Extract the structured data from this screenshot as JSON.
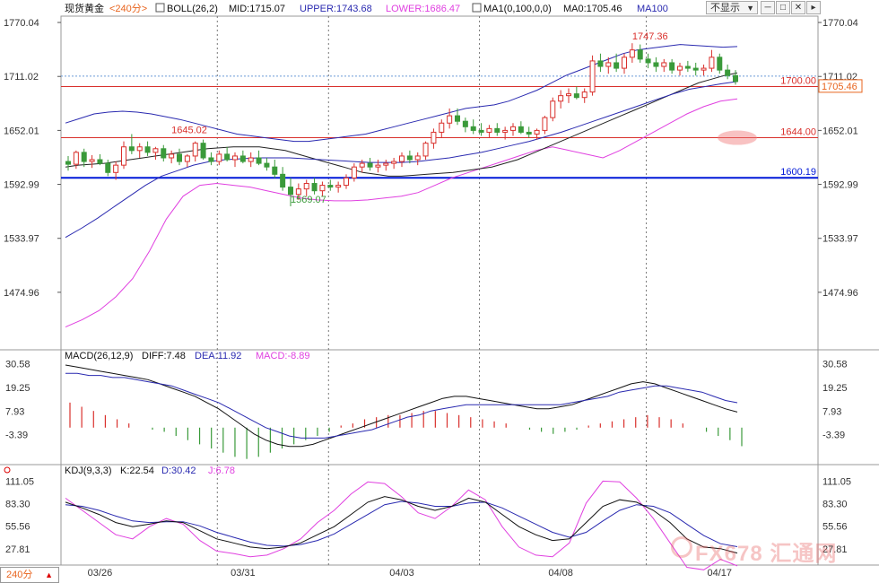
{
  "header": {
    "instrument": "现货黄金",
    "period": "<240分>",
    "boll_label": "BOLL(26,2)",
    "mid": "MID:1715.07",
    "upper": "UPPER:1743.68",
    "lower": "LOWER:1686.47",
    "ma_label": "MA1(0,100,0,0)",
    "ma0": "MA0:1705.46",
    "ma100": "MA100",
    "display_dropdown": "不显示"
  },
  "macd_header": {
    "label": "MACD(26,12,9)",
    "diff": "DIFF:7.48",
    "dea": "DEA:11.92",
    "macd": "MACD:-8.89"
  },
  "kdj_header": {
    "label": "KDJ(9,3,3)",
    "k": "K:22.54",
    "d": "D:30.42",
    "j": "J:6.78"
  },
  "period_selector": "240分",
  "watermark": "FX678 汇通网",
  "colors": {
    "up": "#d9302c",
    "down": "#3a9a3a",
    "mid": "#1a1a1a",
    "band": "#2a2ab0",
    "lower": "#e040e0",
    "blue_line": "#0018d8"
  },
  "chart_data": [
    {
      "type": "candlestick",
      "title": "现货黄金 240分",
      "x_ticks": [
        "03/26",
        "03/31",
        "04/03",
        "04/08",
        "04/17"
      ],
      "y_ticks": [
        1770.04,
        1711.02,
        1652.01,
        1592.99,
        1533.97,
        1474.96
      ],
      "ylim": [
        1416,
        1775
      ],
      "grid": "vertical dotted",
      "ohlc": [
        [
          1618,
          1624,
          1608,
          1615
        ],
        [
          1615,
          1630,
          1610,
          1628
        ],
        [
          1628,
          1632,
          1612,
          1618
        ],
        [
          1618,
          1625,
          1611,
          1620
        ],
        [
          1620,
          1626,
          1614,
          1616
        ],
        [
          1616,
          1620,
          1602,
          1606
        ],
        [
          1606,
          1618,
          1598,
          1614
        ],
        [
          1614,
          1640,
          1610,
          1634
        ],
        [
          1634,
          1648,
          1626,
          1630
        ],
        [
          1630,
          1638,
          1622,
          1634
        ],
        [
          1634,
          1640,
          1624,
          1628
        ],
        [
          1628,
          1634,
          1620,
          1632
        ],
        [
          1632,
          1636,
          1618,
          1622
        ],
        [
          1622,
          1630,
          1616,
          1626
        ],
        [
          1626,
          1632,
          1614,
          1618
        ],
        [
          1618,
          1626,
          1612,
          1624
        ],
        [
          1624,
          1640,
          1618,
          1638
        ],
        [
          1638,
          1642,
          1620,
          1622
        ],
        [
          1622,
          1628,
          1614,
          1618
        ],
        [
          1618,
          1630,
          1614,
          1626
        ],
        [
          1626,
          1634,
          1618,
          1620
        ],
        [
          1620,
          1628,
          1612,
          1624
        ],
        [
          1624,
          1630,
          1616,
          1618
        ],
        [
          1618,
          1628,
          1612,
          1622
        ],
        [
          1622,
          1630,
          1614,
          1616
        ],
        [
          1616,
          1622,
          1608,
          1612
        ],
        [
          1612,
          1620,
          1600,
          1604
        ],
        [
          1604,
          1612,
          1586,
          1590
        ],
        [
          1590,
          1600,
          1569,
          1582
        ],
        [
          1582,
          1594,
          1576,
          1588
        ],
        [
          1588,
          1598,
          1580,
          1594
        ],
        [
          1594,
          1600,
          1582,
          1586
        ],
        [
          1586,
          1596,
          1580,
          1592
        ],
        [
          1592,
          1598,
          1586,
          1590
        ],
        [
          1590,
          1596,
          1584,
          1592
        ],
        [
          1592,
          1604,
          1588,
          1600
        ],
        [
          1600,
          1616,
          1596,
          1612
        ],
        [
          1612,
          1620,
          1606,
          1616
        ],
        [
          1616,
          1622,
          1608,
          1612
        ],
        [
          1612,
          1620,
          1606,
          1614
        ],
        [
          1614,
          1620,
          1608,
          1616
        ],
        [
          1616,
          1622,
          1610,
          1618
        ],
        [
          1618,
          1628,
          1612,
          1624
        ],
        [
          1624,
          1630,
          1616,
          1620
        ],
        [
          1620,
          1628,
          1614,
          1624
        ],
        [
          1624,
          1640,
          1620,
          1638
        ],
        [
          1638,
          1654,
          1632,
          1650
        ],
        [
          1650,
          1664,
          1644,
          1660
        ],
        [
          1660,
          1676,
          1654,
          1668
        ],
        [
          1668,
          1676,
          1658,
          1662
        ],
        [
          1662,
          1666,
          1650,
          1656
        ],
        [
          1656,
          1664,
          1648,
          1652
        ],
        [
          1652,
          1660,
          1646,
          1650
        ],
        [
          1650,
          1658,
          1644,
          1654
        ],
        [
          1654,
          1660,
          1646,
          1650
        ],
        [
          1650,
          1656,
          1642,
          1652
        ],
        [
          1652,
          1660,
          1646,
          1656
        ],
        [
          1656,
          1662,
          1648,
          1650
        ],
        [
          1650,
          1656,
          1644,
          1648
        ],
        [
          1648,
          1654,
          1642,
          1652
        ],
        [
          1652,
          1668,
          1648,
          1666
        ],
        [
          1666,
          1688,
          1662,
          1684
        ],
        [
          1684,
          1696,
          1676,
          1690
        ],
        [
          1690,
          1698,
          1682,
          1692
        ],
        [
          1692,
          1700,
          1686,
          1688
        ],
        [
          1688,
          1698,
          1682,
          1694
        ],
        [
          1694,
          1734,
          1690,
          1728
        ],
        [
          1728,
          1736,
          1716,
          1722
        ],
        [
          1722,
          1732,
          1714,
          1726
        ],
        [
          1726,
          1736,
          1716,
          1720
        ],
        [
          1720,
          1736,
          1714,
          1732
        ],
        [
          1732,
          1747.36,
          1726,
          1740
        ],
        [
          1740,
          1746,
          1726,
          1730
        ],
        [
          1730,
          1736,
          1720,
          1726
        ],
        [
          1726,
          1732,
          1716,
          1722
        ],
        [
          1722,
          1730,
          1716,
          1726
        ],
        [
          1726,
          1730,
          1714,
          1718
        ],
        [
          1718,
          1726,
          1712,
          1722
        ],
        [
          1722,
          1728,
          1716,
          1720
        ],
        [
          1720,
          1726,
          1712,
          1718
        ],
        [
          1718,
          1724,
          1712,
          1720
        ],
        [
          1720,
          1740,
          1716,
          1732
        ],
        [
          1732,
          1736,
          1714,
          1718
        ],
        [
          1718,
          1724,
          1708,
          1712
        ],
        [
          1712,
          1718,
          1702,
          1705.46
        ]
      ],
      "boll_mid": [
        1612,
        1614,
        1615,
        1616,
        1618,
        1620,
        1622,
        1624,
        1626,
        1628,
        1630,
        1632,
        1633,
        1634,
        1634,
        1634,
        1632,
        1630,
        1626,
        1622,
        1618,
        1614,
        1610,
        1606,
        1604,
        1602,
        1602,
        1603,
        1604,
        1605,
        1606,
        1608,
        1610,
        1612,
        1616,
        1620,
        1626,
        1632,
        1638,
        1644,
        1650,
        1656,
        1662,
        1668,
        1674,
        1680,
        1686,
        1692,
        1698,
        1704,
        1708,
        1712,
        1715
      ],
      "boll_upper": [
        1660,
        1665,
        1670,
        1672,
        1673,
        1672,
        1670,
        1667,
        1664,
        1660,
        1656,
        1652,
        1648,
        1646,
        1644,
        1642,
        1640,
        1640,
        1642,
        1644,
        1646,
        1648,
        1652,
        1656,
        1660,
        1664,
        1668,
        1672,
        1676,
        1678,
        1680,
        1684,
        1690,
        1696,
        1704,
        1712,
        1718,
        1724,
        1730,
        1736,
        1740,
        1742,
        1744,
        1746,
        1745,
        1744,
        1743,
        1743.68
      ],
      "boll_lower": [
        1437,
        1445,
        1455,
        1470,
        1490,
        1520,
        1555,
        1580,
        1592,
        1594,
        1592,
        1590,
        1586,
        1582,
        1578,
        1576,
        1575,
        1575,
        1576,
        1578,
        1580,
        1584,
        1592,
        1600,
        1606,
        1612,
        1618,
        1624,
        1630,
        1634,
        1630,
        1626,
        1622,
        1630,
        1640,
        1650,
        1660,
        1670,
        1678,
        1684,
        1686.47
      ],
      "ma100": [
        1535,
        1545,
        1556,
        1568,
        1580,
        1592,
        1602,
        1608,
        1614,
        1618,
        1620,
        1621,
        1622,
        1622,
        1622,
        1621,
        1620,
        1619,
        1618,
        1617,
        1617,
        1617,
        1618,
        1620,
        1622,
        1625,
        1628,
        1632,
        1636,
        1640,
        1645,
        1650,
        1656,
        1662,
        1668,
        1674,
        1680,
        1686,
        1692,
        1697,
        1700,
        1703,
        1705.46
      ],
      "annotations": [
        {
          "text": "1747.36",
          "x": 71,
          "y": 1747.36,
          "color": "#d9302c"
        },
        {
          "text": "1645.02",
          "x": 13,
          "y": 1645.02,
          "color": "#d9302c"
        },
        {
          "text": "1569.07",
          "x": 28,
          "y": 1569.07,
          "color": "#3a9a3a"
        }
      ],
      "hlines": [
        {
          "value": 1700.0,
          "label": "1700.00",
          "color": "#d9302c"
        },
        {
          "value": 1644.0,
          "label": "1644.00",
          "color": "#d9302c"
        },
        {
          "value": 1600.19,
          "label": "1600.19",
          "color": "#0018d8"
        }
      ],
      "last_price": "1705.46",
      "right_ticks_labels": [
        "1770.04",
        "1711.02",
        "1652.01",
        "1592.99",
        "1533.97",
        "1474.96"
      ]
    },
    {
      "type": "line",
      "title": "MACD(26,12,9)",
      "y_ticks": [
        30.58,
        19.25,
        7.93,
        -3.39
      ],
      "ylim": [
        -16,
        33
      ],
      "diff": [
        30,
        29,
        28,
        27,
        26,
        25,
        24,
        23,
        21,
        19,
        17,
        15,
        12,
        9,
        5,
        1,
        -3,
        -6,
        -8,
        -9,
        -9,
        -8,
        -6,
        -4,
        -2,
        0,
        2,
        4,
        6,
        8,
        10,
        12,
        14,
        15,
        15,
        14,
        13,
        12,
        11,
        10,
        9,
        9,
        10,
        11,
        13,
        15,
        17,
        19,
        21,
        22,
        21,
        19,
        17,
        15,
        13,
        11,
        9,
        7.48
      ],
      "dea": [
        26,
        26,
        25,
        25,
        24,
        24,
        23,
        22,
        21,
        20,
        18,
        16,
        14,
        12,
        9,
        6,
        3,
        0,
        -2,
        -4,
        -5,
        -5,
        -5,
        -4,
        -3,
        -2,
        -1,
        1,
        3,
        5,
        6,
        8,
        9,
        10,
        11,
        11,
        11,
        11,
        11,
        11,
        11,
        11,
        11,
        12,
        13,
        14,
        15,
        17,
        18,
        19,
        20,
        20,
        19,
        18,
        17,
        15,
        13,
        11.92
      ],
      "macd": [
        12,
        10,
        8,
        6,
        4,
        2,
        0,
        -1,
        -2,
        -4,
        -6,
        -8,
        -10,
        -12,
        -14,
        -15,
        -14,
        -12,
        -10,
        -8,
        -6,
        -4,
        -2,
        1,
        2,
        4,
        5,
        6,
        6,
        7,
        8,
        8,
        7,
        6,
        5,
        4,
        3,
        2,
        0,
        -1,
        -2,
        -3,
        -2,
        -1,
        1,
        2,
        3,
        4,
        5,
        6,
        5,
        4,
        2,
        0,
        -2,
        -4,
        -6,
        -8.89
      ]
    },
    {
      "type": "line",
      "title": "KDJ(9,3,3)",
      "y_ticks": [
        111.05,
        83.3,
        55.56,
        27.81
      ],
      "ylim": [
        10,
        118
      ],
      "k": [
        85,
        78,
        70,
        60,
        55,
        58,
        62,
        60,
        50,
        40,
        35,
        30,
        28,
        30,
        35,
        45,
        55,
        70,
        85,
        92,
        88,
        80,
        75,
        80,
        90,
        85,
        70,
        55,
        45,
        38,
        40,
        60,
        80,
        88,
        85,
        75,
        60,
        40,
        30,
        28,
        22.54
      ],
      "d": [
        82,
        80,
        75,
        68,
        62,
        60,
        61,
        61,
        56,
        48,
        42,
        36,
        32,
        31,
        33,
        38,
        46,
        58,
        70,
        82,
        86,
        84,
        80,
        80,
        84,
        85,
        78,
        68,
        58,
        48,
        42,
        48,
        62,
        75,
        82,
        80,
        72,
        58,
        44,
        34,
        30.42
      ],
      "j": [
        90,
        75,
        60,
        45,
        40,
        55,
        65,
        58,
        38,
        25,
        22,
        18,
        20,
        28,
        40,
        60,
        75,
        95,
        110,
        108,
        92,
        72,
        65,
        80,
        100,
        88,
        55,
        30,
        20,
        18,
        35,
        84,
        111,
        110,
        90,
        65,
        35,
        5,
        2,
        15,
        6.78
      ]
    }
  ]
}
